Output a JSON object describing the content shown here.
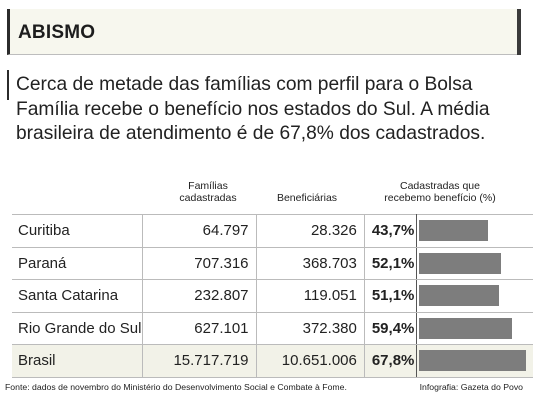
{
  "header": {
    "title": "ABISMO"
  },
  "lede": "Cerca de metade das famílias com perfil para o Bolsa Família recebe o benefício nos estados do Sul. A média brasileira de atendimento é de 67,8% dos cadastrados.",
  "columns": {
    "familias_line1": "Famílias",
    "familias_line2": "cadastradas",
    "beneficiarias": "Beneficiárias",
    "pct_line1": "Cadastradas que",
    "pct_line2": "recebemo benefício (%)"
  },
  "colors": {
    "bar": "#7d7d7d",
    "header_bg": "#f7f7ee",
    "highlight_bg": "#f2f2e8"
  },
  "chart_data": {
    "type": "table",
    "columns": [
      "Famílias cadastradas",
      "Beneficiárias",
      "Cadastradas que recebemo benefício (%)"
    ],
    "rows": [
      {
        "name": "Curitiba",
        "familias": "64.797",
        "beneficiarias": "28.326",
        "pct_label": "43,7%",
        "pct": 43.7
      },
      {
        "name": "Paraná",
        "familias": "707.316",
        "beneficiarias": "368.703",
        "pct_label": "52,1%",
        "pct": 52.1
      },
      {
        "name": "Santa Catarina",
        "familias": "232.807",
        "beneficiarias": "119.051",
        "pct_label": "51,1%",
        "pct": 51.1
      },
      {
        "name": "Rio Grande do Sul",
        "familias": "627.101",
        "beneficiarias": "372.380",
        "pct_label": "59,4%",
        "pct": 59.4
      },
      {
        "name": "Brasil",
        "familias": "15.717.719",
        "beneficiarias": "10.651.006",
        "pct_label": "67,8%",
        "pct": 67.8
      }
    ]
  },
  "footer": {
    "source": "Fonte: dados de novembro do Ministério do Desenvolvimento Social e Combate à Fome.",
    "credit": "Infografia: Gazeta do Povo"
  }
}
